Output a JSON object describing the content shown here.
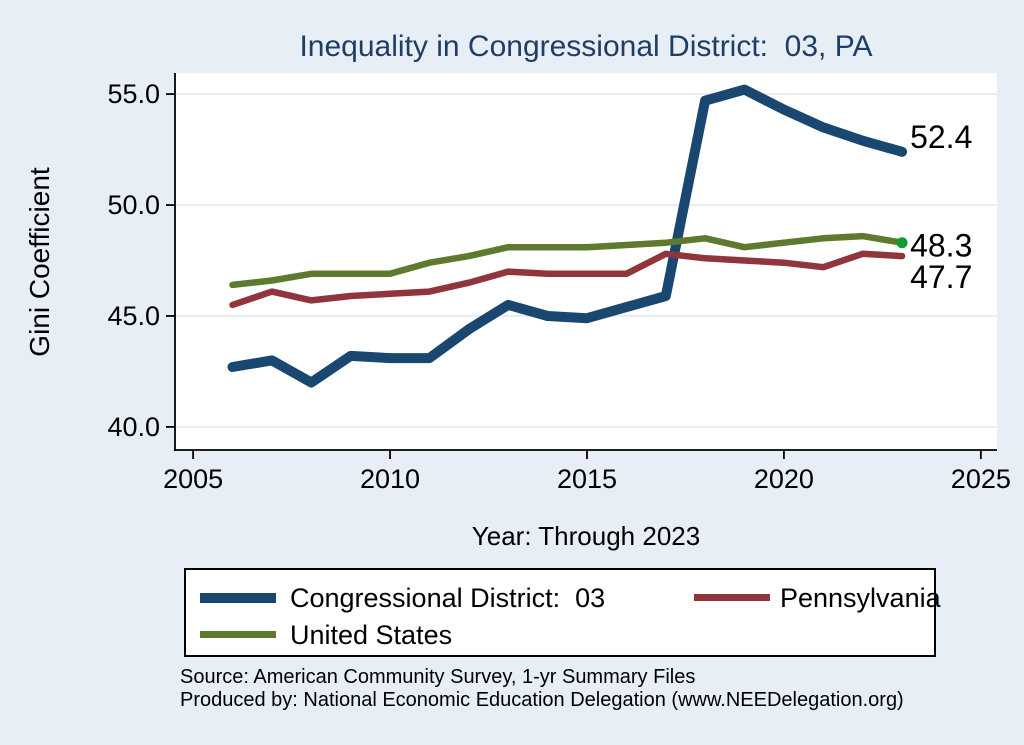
{
  "title": {
    "text": "Inequality in Congressional District:  03, PA",
    "color": "#1e3e66"
  },
  "chart_data": {
    "type": "line",
    "x": [
      2006,
      2007,
      2008,
      2009,
      2010,
      2011,
      2012,
      2013,
      2014,
      2015,
      2016,
      2017,
      2018,
      2019,
      2020,
      2021,
      2022,
      2023
    ],
    "series": [
      {
        "name": "Congressional District:  03",
        "color": "#1a476f",
        "line_width": 10,
        "values": [
          42.7,
          43.0,
          42.0,
          43.2,
          43.1,
          43.1,
          44.4,
          45.5,
          45.0,
          44.9,
          45.4,
          45.9,
          54.7,
          55.2,
          54.3,
          53.5,
          52.9,
          52.4
        ],
        "end_label": "52.4"
      },
      {
        "name": "Pennsylvania",
        "color": "#90353b",
        "line_width": 6.5,
        "values": [
          45.5,
          46.1,
          45.7,
          45.9,
          46.0,
          46.1,
          46.5,
          47.0,
          46.9,
          46.9,
          46.9,
          47.8,
          47.6,
          47.5,
          47.4,
          47.2,
          47.8,
          47.7
        ],
        "end_label": "47.7"
      },
      {
        "name": "United States",
        "color": "#5e7a2f",
        "line_width": 6.5,
        "values": [
          46.4,
          46.6,
          46.9,
          46.9,
          46.9,
          47.4,
          47.7,
          48.1,
          48.1,
          48.1,
          48.2,
          48.3,
          48.5,
          48.1,
          48.3,
          48.5,
          48.6,
          48.3
        ],
        "end_label": "48.3",
        "end_marker_color": "#0f9b2d"
      }
    ],
    "title": "Inequality in Congressional District:  03, PA",
    "xlabel": "Year: Through 2023",
    "ylabel": "Gini Coefficient",
    "xticks": [
      2005,
      2010,
      2015,
      2020,
      2025
    ],
    "xtick_labels": [
      "2005",
      "2010",
      "2015",
      "2020",
      "2025"
    ],
    "yticks": [
      40,
      45,
      50,
      55
    ],
    "ytick_labels": [
      "40.0",
      "45.0",
      "50.0",
      "55.0"
    ],
    "xlim": [
      2004.54,
      2025.41
    ],
    "ylim": [
      38.96,
      55.95
    ],
    "grid": true,
    "grid_color": "#dfe9f1",
    "plot_background": "#ffffff",
    "page_background": "#e7eef5",
    "legend_position": "bottom"
  },
  "notes": {
    "line1": "Source: American Community Survey, 1-yr Summary Files",
    "line2": "Produced by: National Economic Education Delegation (www.NEEDelegation.org)"
  }
}
